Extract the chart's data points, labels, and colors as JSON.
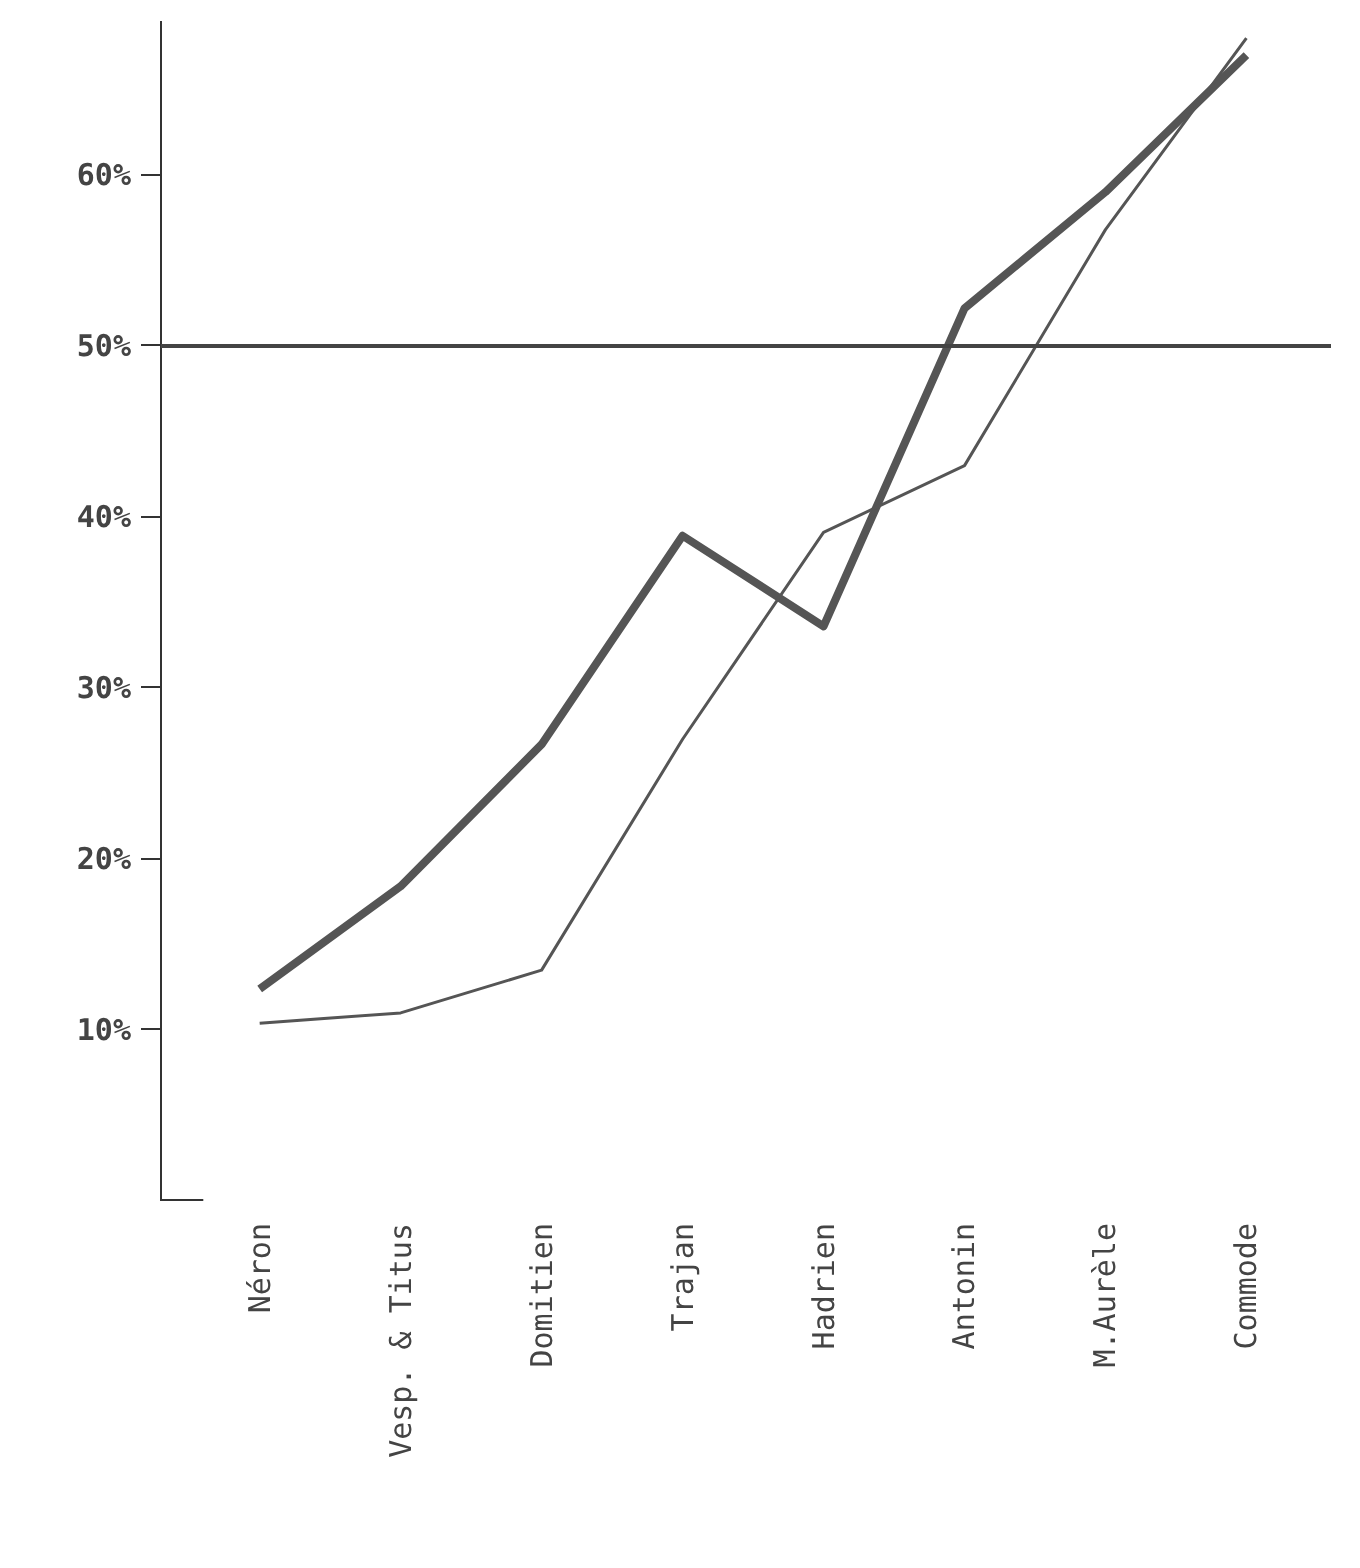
{
  "chart_data": {
    "type": "line",
    "categories": [
      "Néron",
      "Vesp. & Titus",
      "Domitien",
      "Trajan",
      "Hadrien",
      "Antonin",
      "M.Aurèle",
      "Commode"
    ],
    "series": [
      {
        "color": "#555555",
        "values": [
          12.4,
          18.4,
          26.7,
          38.9,
          33.6,
          52.2,
          59,
          67
        ]
      },
      {
        "color": "#555555",
        "values": [
          10.4,
          11,
          13.5,
          27,
          39.1,
          43,
          56.8,
          68
        ]
      }
    ],
    "ylim": [
      0,
      69
    ],
    "yticks": [
      {
        "value": 10,
        "label": "10%"
      },
      {
        "value": 20,
        "label": "20%"
      },
      {
        "value": 30,
        "label": "30%"
      },
      {
        "value": 40,
        "label": "40%"
      },
      {
        "value": 50,
        "label": "50%"
      },
      {
        "value": 60,
        "label": "60%"
      }
    ],
    "ref_lines": [
      {
        "axis": "y",
        "value": 50,
        "color": "#444444"
      }
    ],
    "grid": false,
    "marker": "none",
    "line_style": "solid"
  }
}
